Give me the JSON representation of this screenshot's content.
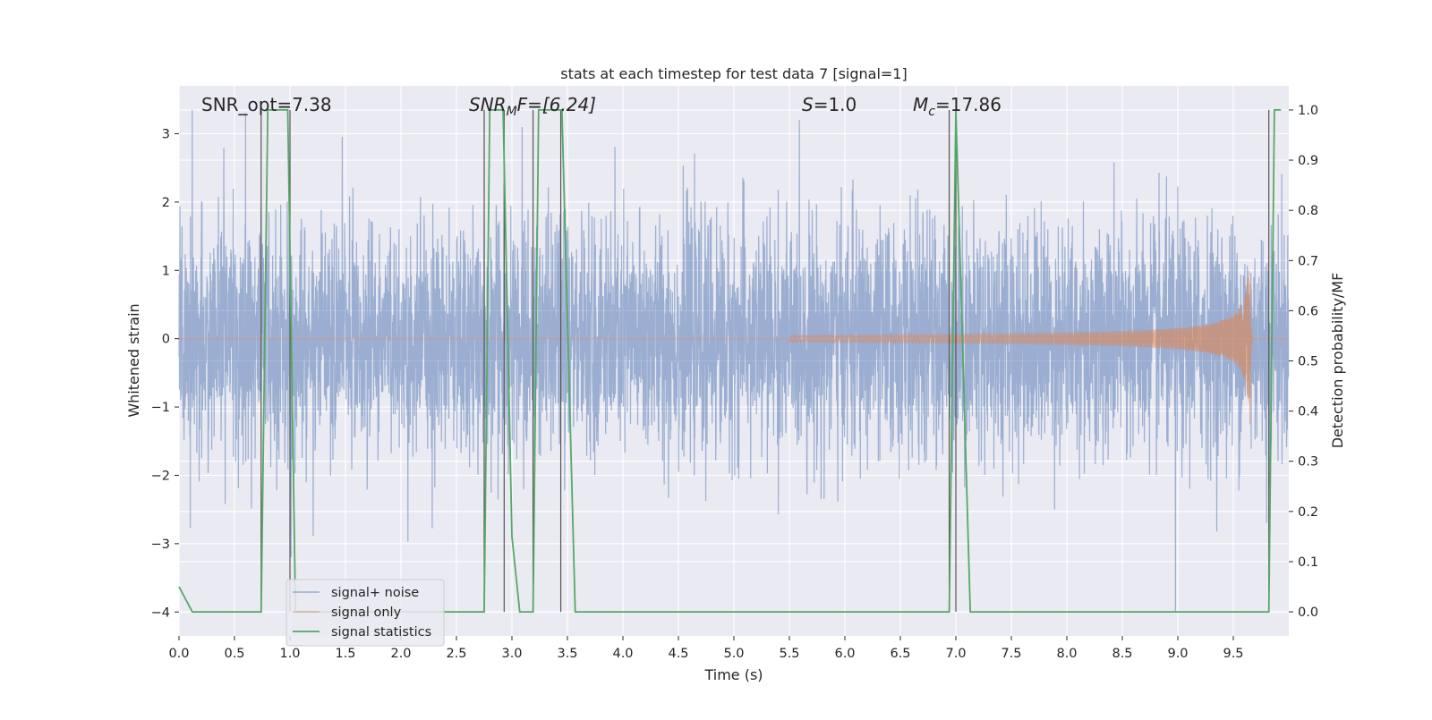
{
  "chart_data": {
    "type": "line",
    "title": "stats at each timestep for test data 7 [signal=1]",
    "xlabel": "Time (s)",
    "ylabel": "Whitened strain",
    "y2label": "Detection probability/MF",
    "xlim": [
      0,
      10
    ],
    "ylim": [
      -4.35,
      3.7
    ],
    "y2lim": [
      -0.048,
      1.048
    ],
    "x_ticks": [
      0,
      0.5,
      1,
      1.5,
      2,
      2.5,
      3,
      3.5,
      4,
      4.5,
      5,
      5.5,
      6,
      6.5,
      7,
      7.5,
      8,
      8.5,
      9,
      9.5
    ],
    "x_tick_labels": [
      "0.0",
      "0.5",
      "1.0",
      "1.5",
      "2.0",
      "2.5",
      "3.0",
      "3.5",
      "4.0",
      "4.5",
      "5.0",
      "5.5",
      "6.0",
      "6.5",
      "7.0",
      "7.5",
      "8.0",
      "8.5",
      "9.0",
      "9.5"
    ],
    "y_ticks": [
      -4,
      -3,
      -2,
      -1,
      0,
      1,
      2,
      3
    ],
    "y_tick_labels": [
      "−4",
      "−3",
      "−2",
      "−1",
      "0",
      "1",
      "2",
      "3"
    ],
    "y2_ticks": [
      0,
      0.1,
      0.2,
      0.3,
      0.4,
      0.5,
      0.6,
      0.7,
      0.8,
      0.9,
      1.0
    ],
    "y2_tick_labels": [
      "0.0",
      "0.1",
      "0.2",
      "0.3",
      "0.4",
      "0.5",
      "0.6",
      "0.7",
      "0.8",
      "0.9",
      "1.0"
    ],
    "grid": true,
    "legend_position": "lower-left",
    "annotations": {
      "snr_opt": "SNR_opt=7.38",
      "snr_mf_main": "SNR",
      "snr_mf_sub": "M",
      "snr_mf_rest": "F=[6.24]",
      "s_italic": "S",
      "s_rest": "=1.0",
      "mc_main": "M",
      "mc_sub": "c",
      "mc_rest": "=17.86"
    },
    "series": [
      {
        "name": "signal+ noise",
        "color": "#4c72b0",
        "description_values": "Gaussian-like whitened noise, amplitude within about ±3.4",
        "noise_sigma": 0.85,
        "sample_rate": 204.8,
        "peaks": [
          [
            0.12,
            3.35
          ],
          [
            0.6,
            3.3
          ],
          [
            8.98,
            -4.0
          ],
          [
            9.8,
            3.35
          ],
          [
            9.8,
            -2.7
          ]
        ]
      },
      {
        "name": "signal only",
        "color": "#dd8452",
        "chirp": {
          "start": 5.5,
          "merger": 9.65,
          "peak_amplitude": 1.3
        }
      },
      {
        "name": "signal statistics",
        "color": "#55a868",
        "axis": "right",
        "x": [
          0.0,
          0.12,
          0.74,
          0.8,
          0.98,
          1.05,
          2.75,
          2.8,
          2.92,
          3.0,
          3.07,
          3.19,
          3.24,
          3.45,
          3.57,
          6.94,
          7.0,
          7.13,
          9.82,
          9.87,
          9.93
        ],
        "y": [
          0.05,
          0.0,
          0.0,
          1.0,
          1.0,
          0.0,
          0.0,
          1.0,
          1.0,
          0.15,
          0.0,
          0.0,
          1.0,
          1.0,
          0.0,
          0.0,
          1.0,
          0.0,
          0.0,
          1.0,
          1.0
        ]
      }
    ],
    "vertical_markers": {
      "color": "#555555",
      "x": [
        0.74,
        1.0,
        2.75,
        2.93,
        3.19,
        3.44,
        6.94,
        7.0,
        9.82
      ]
    }
  }
}
